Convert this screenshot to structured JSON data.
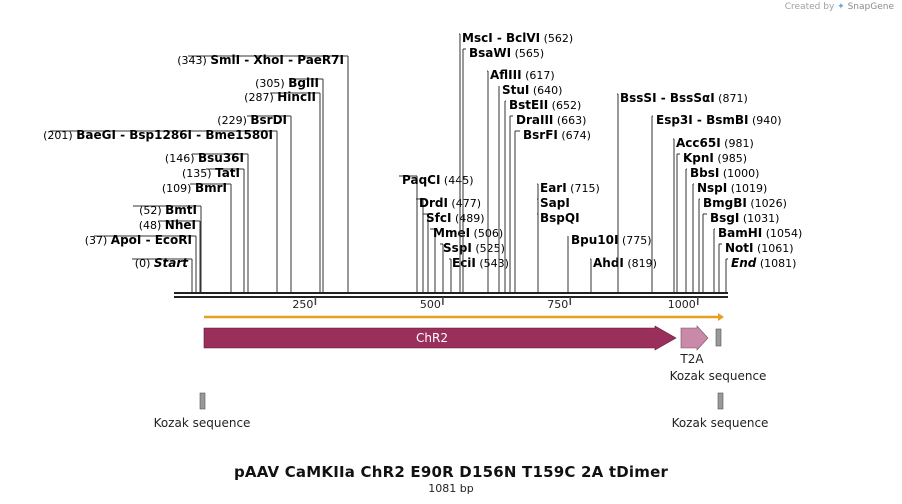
{
  "credit": {
    "prefix": "Created by",
    "brand": "SnapGene"
  },
  "map": {
    "name": "pAAV CaMKIIa ChR2 E90R D156N T159C 2A tDimer",
    "length_label": "1081 bp",
    "length": 1081,
    "ticks": [
      250,
      500,
      750,
      1000
    ]
  },
  "sites": [
    {
      "name": "Start",
      "pos": "(0)",
      "italic": true
    },
    {
      "name": "ApoI",
      "alt": "EcoRI",
      "pos": "(37)"
    },
    {
      "name": "NheI",
      "pos": "(48)"
    },
    {
      "name": "BmtI",
      "pos": "(52)"
    },
    {
      "name": "BmrI",
      "pos": "(109)"
    },
    {
      "name": "TatI",
      "pos": "(135)"
    },
    {
      "name": "Bsu36I",
      "pos": "(146)"
    },
    {
      "name": "BaeGI",
      "alt": "Bsp1286I",
      "alt2": "Bme1580I",
      "pos": "(201)"
    },
    {
      "name": "BsrDI",
      "pos": "(229)"
    },
    {
      "name": "HincII",
      "pos": "(287)"
    },
    {
      "name": "BglII",
      "pos": "(305)"
    },
    {
      "name": "SmlI",
      "alt": "XhoI",
      "alt2": "PaeR7I",
      "pos": "(343)"
    },
    {
      "name": "PaqCI",
      "pos": "(445)"
    },
    {
      "name": "DrdI",
      "pos": "(477)"
    },
    {
      "name": "SfcI",
      "pos": "(489)"
    },
    {
      "name": "MmeI",
      "pos": "(506)"
    },
    {
      "name": "SspI",
      "pos": "(525)"
    },
    {
      "name": "EciI",
      "pos": "(543)"
    },
    {
      "name": "MscI",
      "alt": "BclVI",
      "pos": "(562)"
    },
    {
      "name": "BsaWI",
      "pos": "(565)"
    },
    {
      "name": "AflIII",
      "pos": "(617)"
    },
    {
      "name": "StuI",
      "pos": "(640)"
    },
    {
      "name": "BstEII",
      "pos": "(652)"
    },
    {
      "name": "DraIII",
      "pos": "(663)"
    },
    {
      "name": "BsrFI",
      "pos": "(674)"
    },
    {
      "name": "EarI",
      "pos": "(715)"
    },
    {
      "name": "SapI",
      "pos": ""
    },
    {
      "name": "BspQI",
      "pos": ""
    },
    {
      "name": "Bpu10I",
      "pos": "(775)"
    },
    {
      "name": "AhdI",
      "pos": "(819)"
    },
    {
      "name": "BssSI",
      "alt": "BssSαI",
      "pos": "(871)"
    },
    {
      "name": "Esp3I",
      "alt": "BsmBI",
      "pos": "(940)"
    },
    {
      "name": "Acc65I",
      "pos": "(981)"
    },
    {
      "name": "KpnI",
      "pos": "(985)"
    },
    {
      "name": "BbsI",
      "pos": "(1000)"
    },
    {
      "name": "NspI",
      "pos": "(1019)"
    },
    {
      "name": "BmgBI",
      "pos": "(1026)"
    },
    {
      "name": "BsgI",
      "pos": "(1031)"
    },
    {
      "name": "BamHI",
      "pos": "(1054)"
    },
    {
      "name": "NotI",
      "pos": "(1061)"
    },
    {
      "name": "End",
      "pos": "(1081)",
      "italic": true
    }
  ],
  "features": [
    {
      "name": "ChR2",
      "start": 55,
      "end": 1014,
      "color": "#9b2f5c"
    },
    {
      "name": "T2A",
      "start": 1033,
      "end": 1087,
      "color": "#c88aa8"
    },
    {
      "name": "Kozak sequence",
      "start": 1091,
      "end": 1102,
      "color": "#999999",
      "kind": "upper"
    },
    {
      "name": "Kozak sequence",
      "start": 55,
      "end": 66,
      "color": "#999999",
      "kind": "lower"
    },
    {
      "name": "Kozak sequence",
      "start": 1091,
      "end": 1102,
      "color": "#999999",
      "kind": "lower"
    }
  ],
  "colors": {
    "backbone": "#222222",
    "orf_line": "#e6a01e",
    "tick": "#444444"
  }
}
